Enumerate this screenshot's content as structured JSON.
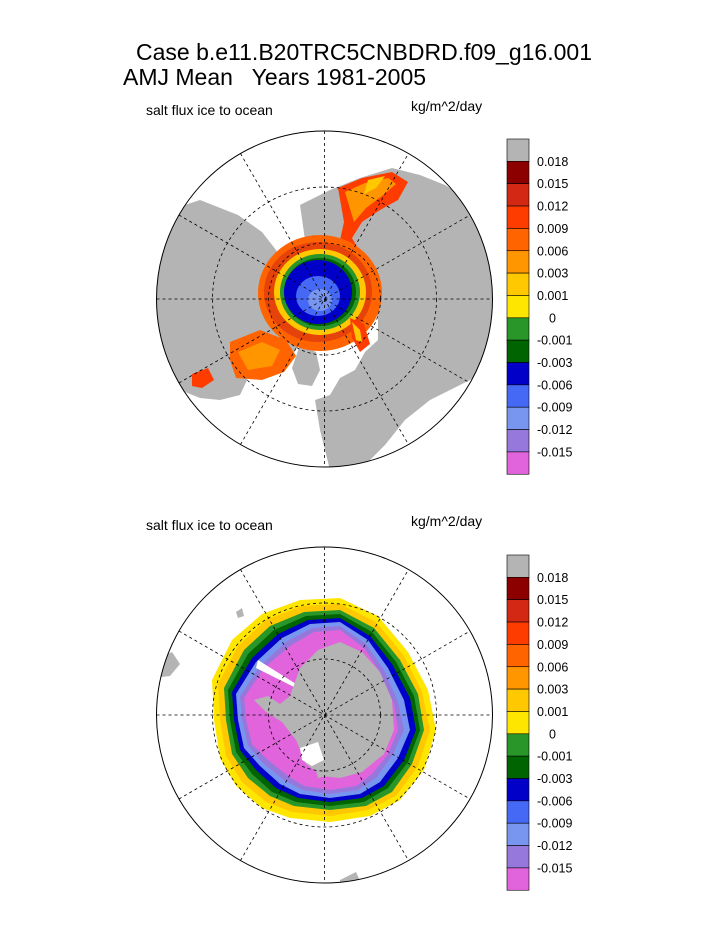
{
  "header": {
    "case_title": "Case b.e11.B20TRC5CNBDRD.f09_g16.001",
    "period_title": "AMJ Mean   Years 1981-2005"
  },
  "colors": {
    "land": "#b4b4b4",
    "missing": "#b4b4b4",
    "ocean_no_ice": "#ffffff"
  },
  "chart_data": [
    {
      "type": "heatmap",
      "projection": "polar stereographic",
      "hemisphere": "north",
      "title": "salt flux ice to ocean",
      "units": "kg/m^2/day",
      "levels": [
        "0.018",
        "0.015",
        "0.012",
        "0.009",
        "0.006",
        "0.003",
        "0.001",
        "0",
        "-0.001",
        "-0.003",
        "-0.006",
        "-0.009",
        "-0.012",
        "-0.015"
      ],
      "colors": [
        "#b4b4b4",
        "#8c0000",
        "#d22814",
        "#ff3c00",
        "#ff6400",
        "#ff9600",
        "#ffc800",
        "#ffe600",
        "#289628",
        "#006400",
        "#0000c8",
        "#4669f5",
        "#7896f0",
        "#9678dc",
        "#e164dc"
      ]
    },
    {
      "type": "heatmap",
      "projection": "polar stereographic",
      "hemisphere": "south",
      "title": "salt flux ice to ocean",
      "units": "kg/m^2/day",
      "levels": [
        "0.018",
        "0.015",
        "0.012",
        "0.009",
        "0.006",
        "0.003",
        "0.001",
        "0",
        "-0.001",
        "-0.003",
        "-0.006",
        "-0.009",
        "-0.012",
        "-0.015"
      ],
      "colors": [
        "#b4b4b4",
        "#8c0000",
        "#d22814",
        "#ff3c00",
        "#ff6400",
        "#ff9600",
        "#ffc800",
        "#ffe600",
        "#289628",
        "#006400",
        "#0000c8",
        "#4669f5",
        "#7896f0",
        "#9678dc",
        "#e164dc"
      ]
    }
  ]
}
